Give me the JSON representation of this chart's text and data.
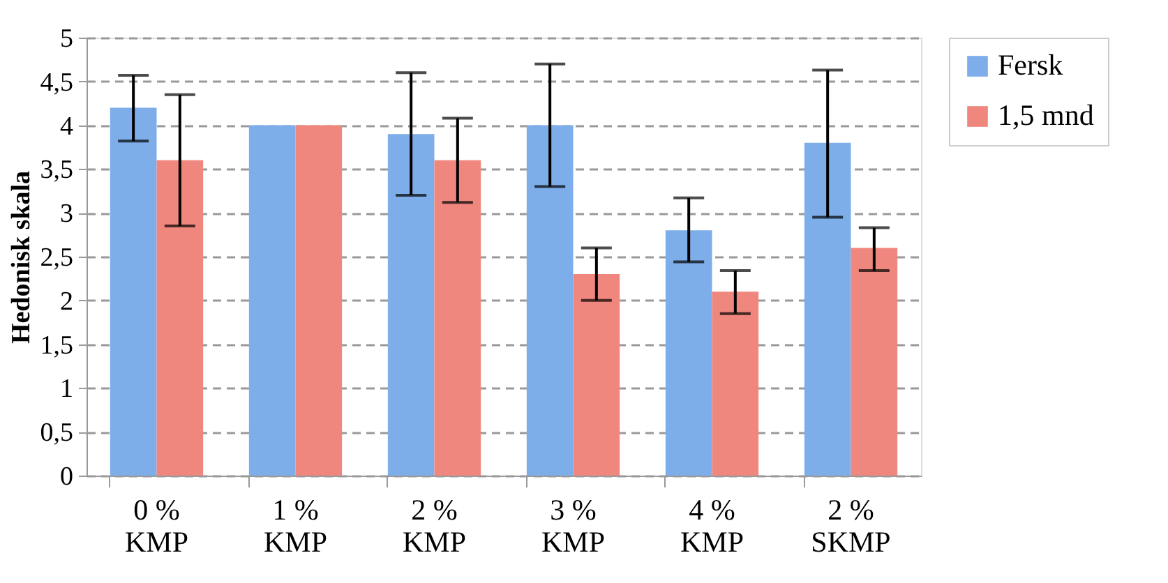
{
  "chart_data": {
    "type": "bar",
    "ylabel": "Hedonisk skala",
    "categories": [
      "0 %\nKMP",
      "1 %\nKMP",
      "2 %\nKMP",
      "3 %\nKMP",
      "4 %\nKMP",
      "2 %\nSKMP"
    ],
    "series": [
      {
        "name": "Fersk",
        "color": "#7eaeea",
        "values": [
          4.2,
          4.0,
          3.9,
          4.0,
          2.8,
          3.8
        ],
        "errors": [
          [
            3.82,
            4.57
          ],
          null,
          [
            3.2,
            4.6
          ],
          [
            3.3,
            4.7
          ],
          [
            2.44,
            3.17
          ],
          [
            2.95,
            4.63
          ]
        ]
      },
      {
        "name": "1,5 mnd",
        "color": "#f0877e",
        "values": [
          3.6,
          4.0,
          3.6,
          2.3,
          2.1,
          2.6
        ],
        "errors": [
          [
            2.85,
            4.35
          ],
          null,
          [
            3.12,
            4.08
          ],
          [
            2.0,
            2.6
          ],
          [
            1.85,
            2.34
          ],
          [
            2.34,
            2.83
          ]
        ]
      }
    ],
    "ylim": [
      0,
      5
    ],
    "yticks": [
      0,
      {
        "value": 0.5,
        "label": "0,5"
      },
      1,
      {
        "value": 1.5,
        "label": "1,5"
      },
      2,
      {
        "value": 2.5,
        "label": "2,5"
      },
      3,
      {
        "value": 3.5,
        "label": "3,5"
      },
      4,
      {
        "value": 4.5,
        "label": "4,5"
      },
      5
    ],
    "grid": "y",
    "legend": "top right"
  }
}
